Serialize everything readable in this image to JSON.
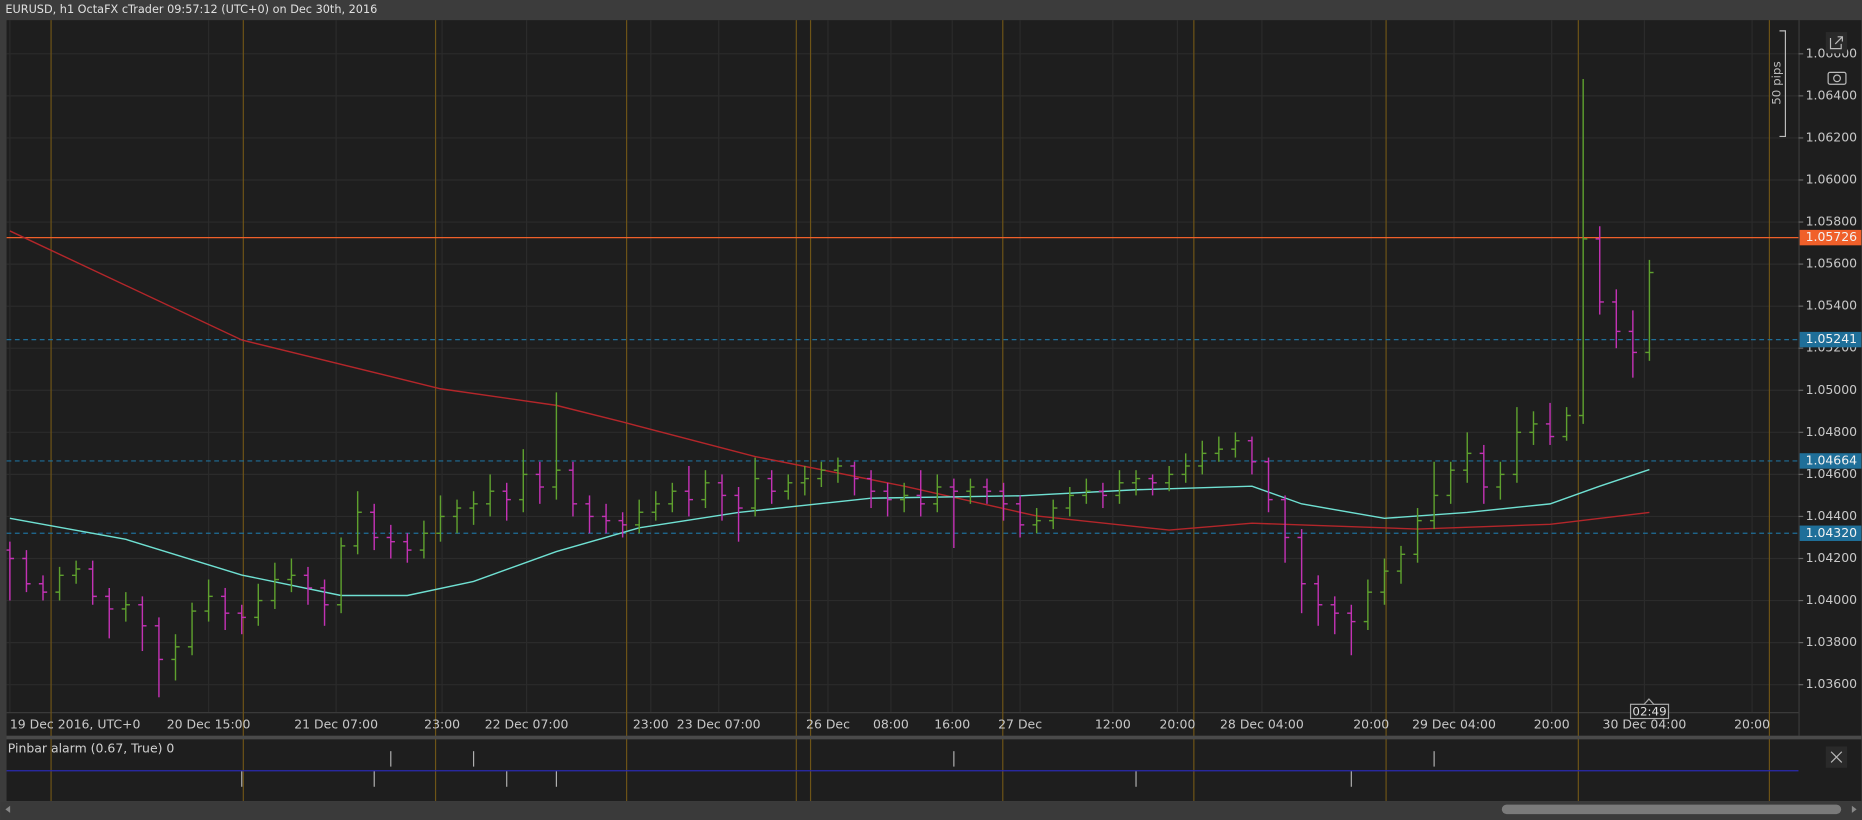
{
  "window_title": "EURUSD, h1 OctaFX cTrader 09:57:12 (UTC+0) on Dec 30th, 2016",
  "chart_data": {
    "type": "ohlc",
    "up_color": "#5ea02e",
    "down_color": "#c232b4",
    "x": [
      0,
      1,
      2,
      3,
      4,
      5,
      6,
      7,
      8,
      9,
      10,
      11,
      12,
      13,
      14,
      15,
      16,
      17,
      18,
      19,
      20,
      21,
      22,
      23,
      24,
      25,
      26,
      27,
      28,
      29,
      30,
      31,
      32,
      33,
      34,
      35,
      36,
      37,
      38,
      39,
      40,
      41,
      42,
      43,
      44,
      45,
      46,
      47,
      48,
      49,
      50,
      51,
      52,
      53,
      54,
      55,
      56,
      57,
      58,
      59,
      60,
      61,
      62,
      63,
      64,
      65,
      66,
      67,
      68,
      69,
      70,
      71,
      72,
      73,
      74,
      75,
      76,
      77,
      78,
      79,
      80,
      81,
      82,
      83,
      84,
      85,
      86,
      87,
      88,
      89,
      90,
      91,
      92,
      93,
      94,
      95,
      96,
      97,
      98,
      99
    ],
    "open": [
      1.0424,
      1.042,
      1.0408,
      1.0404,
      1.0412,
      1.0415,
      1.0402,
      1.0396,
      1.0398,
      1.0388,
      1.0372,
      1.0378,
      1.0395,
      1.0402,
      1.0394,
      1.0392,
      1.04,
      1.041,
      1.0412,
      1.0406,
      1.0398,
      1.0426,
      1.0442,
      1.043,
      1.0428,
      1.0424,
      1.0432,
      1.044,
      1.0444,
      1.0446,
      1.0452,
      1.0448,
      1.046,
      1.0454,
      1.0462,
      1.0446,
      1.044,
      1.0438,
      1.0436,
      1.0442,
      1.0446,
      1.0452,
      1.0448,
      1.0456,
      1.045,
      1.0444,
      1.0458,
      1.0452,
      1.0456,
      1.0458,
      1.0462,
      1.0464,
      1.0458,
      1.0452,
      1.0448,
      1.045,
      1.0446,
      1.0454,
      1.0452,
      1.0454,
      1.0452,
      1.0446,
      1.0436,
      1.0438,
      1.0444,
      1.045,
      1.0452,
      1.045,
      1.0456,
      1.0458,
      1.0456,
      1.046,
      1.0464,
      1.047,
      1.0472,
      1.0476,
      1.0466,
      1.0448,
      1.043,
      1.0408,
      1.0398,
      1.0394,
      1.039,
      1.0404,
      1.0414,
      1.0422,
      1.0438,
      1.045,
      1.0462,
      1.047,
      1.0454,
      1.046,
      1.048,
      1.0484,
      1.0478,
      1.0488,
      1.0572,
      1.0542,
      1.0528,
      1.0518
    ],
    "high": [
      1.0428,
      1.0424,
      1.0412,
      1.0416,
      1.0419,
      1.0419,
      1.0406,
      1.0404,
      1.0402,
      1.0392,
      1.0384,
      1.0399,
      1.041,
      1.0406,
      1.0398,
      1.0408,
      1.0418,
      1.042,
      1.0416,
      1.041,
      1.043,
      1.0452,
      1.0446,
      1.0436,
      1.0432,
      1.0438,
      1.045,
      1.0448,
      1.0452,
      1.046,
      1.0456,
      1.0472,
      1.0466,
      1.0499,
      1.0466,
      1.045,
      1.0446,
      1.0442,
      1.0448,
      1.0452,
      1.0456,
      1.0464,
      1.0462,
      1.046,
      1.0454,
      1.0468,
      1.0462,
      1.046,
      1.0464,
      1.0466,
      1.0468,
      1.0466,
      1.0462,
      1.0456,
      1.0456,
      1.0462,
      1.046,
      1.0458,
      1.0458,
      1.0458,
      1.0456,
      1.045,
      1.0444,
      1.0448,
      1.0454,
      1.0458,
      1.0456,
      1.0462,
      1.0462,
      1.046,
      1.0464,
      1.047,
      1.0476,
      1.0478,
      1.048,
      1.0478,
      1.0468,
      1.045,
      1.0434,
      1.0412,
      1.0402,
      1.0398,
      1.041,
      1.042,
      1.0426,
      1.0444,
      1.0466,
      1.0466,
      1.048,
      1.0474,
      1.0466,
      1.0492,
      1.049,
      1.0494,
      1.0492,
      1.0648,
      1.0578,
      1.0548,
      1.0538,
      1.0562
    ],
    "low": [
      1.04,
      1.0404,
      1.04,
      1.04,
      1.0408,
      1.0398,
      1.0382,
      1.039,
      1.0376,
      1.0354,
      1.0362,
      1.0374,
      1.039,
      1.0386,
      1.0384,
      1.0388,
      1.0396,
      1.0404,
      1.0398,
      1.0388,
      1.0394,
      1.0422,
      1.0424,
      1.042,
      1.0418,
      1.042,
      1.0428,
      1.0432,
      1.0436,
      1.044,
      1.0438,
      1.0442,
      1.0446,
      1.0448,
      1.044,
      1.0432,
      1.0432,
      1.043,
      1.0432,
      1.0438,
      1.0442,
      1.044,
      1.0444,
      1.0438,
      1.0428,
      1.044,
      1.0446,
      1.0448,
      1.045,
      1.0454,
      1.0456,
      1.045,
      1.0444,
      1.044,
      1.0442,
      1.044,
      1.0442,
      1.0425,
      1.0446,
      1.0446,
      1.0438,
      1.043,
      1.0432,
      1.0434,
      1.044,
      1.0446,
      1.0444,
      1.0446,
      1.045,
      1.045,
      1.0452,
      1.0456,
      1.046,
      1.0466,
      1.0468,
      1.046,
      1.0442,
      1.0418,
      1.0394,
      1.0388,
      1.0384,
      1.0374,
      1.0386,
      1.0398,
      1.0408,
      1.0418,
      1.0434,
      1.0446,
      1.0456,
      1.0446,
      1.0448,
      1.0456,
      1.0474,
      1.0474,
      1.0476,
      1.0484,
      1.0536,
      1.052,
      1.0506,
      1.0514
    ],
    "close": [
      1.042,
      1.0408,
      1.0404,
      1.0412,
      1.0415,
      1.0402,
      1.0396,
      1.0398,
      1.0388,
      1.0372,
      1.0378,
      1.0395,
      1.0402,
      1.0394,
      1.0392,
      1.04,
      1.041,
      1.0412,
      1.0406,
      1.0398,
      1.0426,
      1.0442,
      1.043,
      1.0428,
      1.0424,
      1.0432,
      1.044,
      1.0444,
      1.0446,
      1.0452,
      1.0448,
      1.046,
      1.0454,
      1.0462,
      1.0446,
      1.044,
      1.0438,
      1.0436,
      1.0442,
      1.0446,
      1.0452,
      1.0448,
      1.0456,
      1.045,
      1.0444,
      1.0458,
      1.0452,
      1.0456,
      1.0458,
      1.0462,
      1.0464,
      1.0458,
      1.0452,
      1.0448,
      1.045,
      1.0446,
      1.0454,
      1.0452,
      1.0454,
      1.0452,
      1.0446,
      1.0436,
      1.0438,
      1.0444,
      1.045,
      1.0452,
      1.045,
      1.0456,
      1.0458,
      1.0456,
      1.046,
      1.0464,
      1.047,
      1.0472,
      1.0476,
      1.0466,
      1.0448,
      1.043,
      1.0408,
      1.0398,
      1.0394,
      1.039,
      1.0404,
      1.0414,
      1.0422,
      1.0438,
      1.045,
      1.0462,
      1.047,
      1.0454,
      1.046,
      1.048,
      1.0484,
      1.0478,
      1.0488,
      1.0572,
      1.0542,
      1.0528,
      1.0518,
      1.0556
    ],
    "moving_averages": [
      {
        "color": "#b3262a",
        "x": [
          0,
          14,
          26,
          33,
          37,
          45,
          54,
          62,
          70,
          75,
          85,
          93,
          99
        ],
        "values": [
          1.05758,
          1.05239,
          1.05007,
          1.04928,
          1.04849,
          1.04685,
          1.04544,
          1.04402,
          1.04335,
          1.04368,
          1.0434,
          1.04363,
          1.04419
        ]
      },
      {
        "color": "#6fe0d2",
        "x": [
          0,
          7,
          14,
          20,
          24,
          28,
          33,
          38,
          44,
          52,
          61,
          68,
          75,
          78,
          83,
          88,
          93,
          96,
          99
        ],
        "values": [
          1.04391,
          1.04291,
          1.04121,
          1.04024,
          1.04024,
          1.04091,
          1.04233,
          1.04346,
          1.04419,
          1.04487,
          1.04498,
          1.04527,
          1.04544,
          1.0446,
          1.04391,
          1.04419,
          1.0446,
          1.04544,
          1.04623
        ]
      }
    ],
    "hlines": [
      {
        "value": 1.05726,
        "label": "1.05726",
        "color": "#f0602a",
        "dashed": false
      },
      {
        "value": 1.05241,
        "label": "1.05241",
        "color": "#1f6f99",
        "dashed": true
      },
      {
        "value": 1.04664,
        "label": "1.04664",
        "color": "#1f6f99",
        "dashed": true
      },
      {
        "value": 1.0432,
        "label": "1.04320",
        "color": "#1f6f99",
        "dashed": true
      }
    ],
    "xlim": [
      -0.2,
      108.0
    ],
    "ylim": [
      1.0347,
      1.0676
    ],
    "xticks": [
      {
        "value": 0,
        "label": "19 Dec 2016, UTC+0"
      },
      {
        "value": 12.0,
        "label": "20 Dec 15:00"
      },
      {
        "value": 19.7,
        "label": "21 Dec 07:00"
      },
      {
        "value": 26.1,
        "label": "23:00"
      },
      {
        "value": 31.2,
        "label": "22 Dec 07:00"
      },
      {
        "value": 38.7,
        "label": "23:00"
      },
      {
        "value": 42.8,
        "label": "23 Dec 07:00"
      },
      {
        "value": 49.4,
        "label": "26 Dec"
      },
      {
        "value": 53.2,
        "label": "08:00"
      },
      {
        "value": 56.9,
        "label": "16:00"
      },
      {
        "value": 61.0,
        "label": "27 Dec"
      },
      {
        "value": 66.6,
        "label": "12:00"
      },
      {
        "value": 70.5,
        "label": "20:00"
      },
      {
        "value": 75.6,
        "label": "28 Dec 04:00"
      },
      {
        "value": 82.2,
        "label": "20:00"
      },
      {
        "value": 87.2,
        "label": "29 Dec 04:00"
      },
      {
        "value": 93.1,
        "label": "20:00"
      },
      {
        "value": 98.7,
        "label": "30 Dec 04:00"
      },
      {
        "value": 105.2,
        "label": "20:00"
      }
    ],
    "yticks": [
      {
        "value": 1.036,
        "label": "1.03600"
      },
      {
        "value": 1.038,
        "label": "1.03800"
      },
      {
        "value": 1.04,
        "label": "1.04000"
      },
      {
        "value": 1.042,
        "label": "1.04200"
      },
      {
        "value": 1.044,
        "label": "1.04400"
      },
      {
        "value": 1.046,
        "label": "1.04600"
      },
      {
        "value": 1.048,
        "label": "1.04800"
      },
      {
        "value": 1.05,
        "label": "1.05000"
      },
      {
        "value": 1.052,
        "label": "1.05200"
      },
      {
        "value": 1.054,
        "label": "1.05400"
      },
      {
        "value": 1.056,
        "label": "1.05600"
      },
      {
        "value": 1.058,
        "label": "1.05800"
      },
      {
        "value": 1.06,
        "label": "1.06000"
      },
      {
        "value": 1.062,
        "label": "1.06200"
      },
      {
        "value": 1.064,
        "label": "1.06400"
      },
      {
        "value": 1.066,
        "label": "1.06600"
      }
    ],
    "grid": true,
    "annotation": "50 pips",
    "countdown": "02:49",
    "indicator": {
      "title": "Pinbar alarm (0.67, True) 0",
      "color": "#2a2ab0",
      "up_signals": [
        23,
        28,
        57,
        86
      ],
      "down_signals": [
        14,
        22,
        30,
        33,
        68,
        81
      ]
    }
  }
}
